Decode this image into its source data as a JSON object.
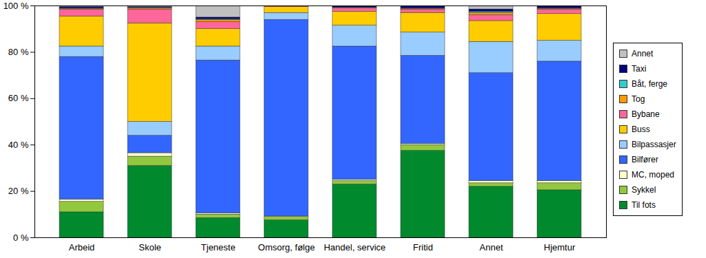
{
  "chart_data": {
    "type": "bar",
    "stacked": true,
    "grid": false,
    "legend": "right",
    "categories": [
      "Arbeid",
      "Skole",
      "Tjeneste",
      "Omsorg, følge",
      "Handel, service",
      "Fritid",
      "Annet",
      "Hjemtur"
    ],
    "ylim": [
      0,
      100
    ],
    "yticks": [
      {
        "value": 0,
        "label": "0 %"
      },
      {
        "value": 20,
        "label": "20 %"
      },
      {
        "value": 40,
        "label": "40 %"
      },
      {
        "value": 60,
        "label": "60 %"
      },
      {
        "value": 80,
        "label": "80 %"
      },
      {
        "value": 100,
        "label": "100 %"
      }
    ],
    "series": [
      {
        "name": "Til fots",
        "color": "#008a2e",
        "values": [
          11,
          31,
          8.5,
          7.5,
          23,
          37.5,
          22,
          20.5
        ]
      },
      {
        "name": "Sykkel",
        "color": "#92c83e",
        "values": [
          4.5,
          4,
          1.5,
          1.5,
          1.5,
          2.5,
          1.5,
          3
        ]
      },
      {
        "name": "MC, moped",
        "color": "#ffffcc",
        "values": [
          1,
          1.5,
          0.5,
          0.2,
          0.5,
          0.5,
          1,
          1
        ]
      },
      {
        "name": "Bilfører",
        "color": "#3366ff",
        "values": [
          61.5,
          7.5,
          66,
          84.8,
          57.5,
          38,
          46.5,
          51.5
        ]
      },
      {
        "name": "Bilpassasjer",
        "color": "#99ccff",
        "values": [
          4.5,
          6,
          6,
          3,
          9,
          10,
          13.5,
          9
        ]
      },
      {
        "name": "Buss",
        "color": "#ffcc00",
        "values": [
          13,
          42.5,
          7.5,
          2.5,
          6,
          8.5,
          9,
          11.5
        ]
      },
      {
        "name": "Bybane",
        "color": "#ff6699",
        "values": [
          3,
          6,
          3,
          0.3,
          1.5,
          1.5,
          2.5,
          2
        ]
      },
      {
        "name": "Tog",
        "color": "#ff9900",
        "values": [
          0.3,
          0.5,
          1,
          0,
          0.2,
          0.3,
          1,
          0.3
        ]
      },
      {
        "name": "Båt, ferge",
        "color": "#33cccc",
        "values": [
          0.2,
          0.2,
          0.3,
          0,
          0.1,
          0.2,
          0.5,
          0.2
        ]
      },
      {
        "name": "Taxi",
        "color": "#000080",
        "values": [
          0.5,
          0.3,
          0.7,
          0.1,
          0.5,
          0.8,
          1,
          0.7
        ]
      },
      {
        "name": "Annet",
        "color": "#c0c0c0",
        "values": [
          0.5,
          0.5,
          5,
          0.1,
          0.2,
          0.2,
          1.5,
          0.3
        ]
      }
    ]
  }
}
